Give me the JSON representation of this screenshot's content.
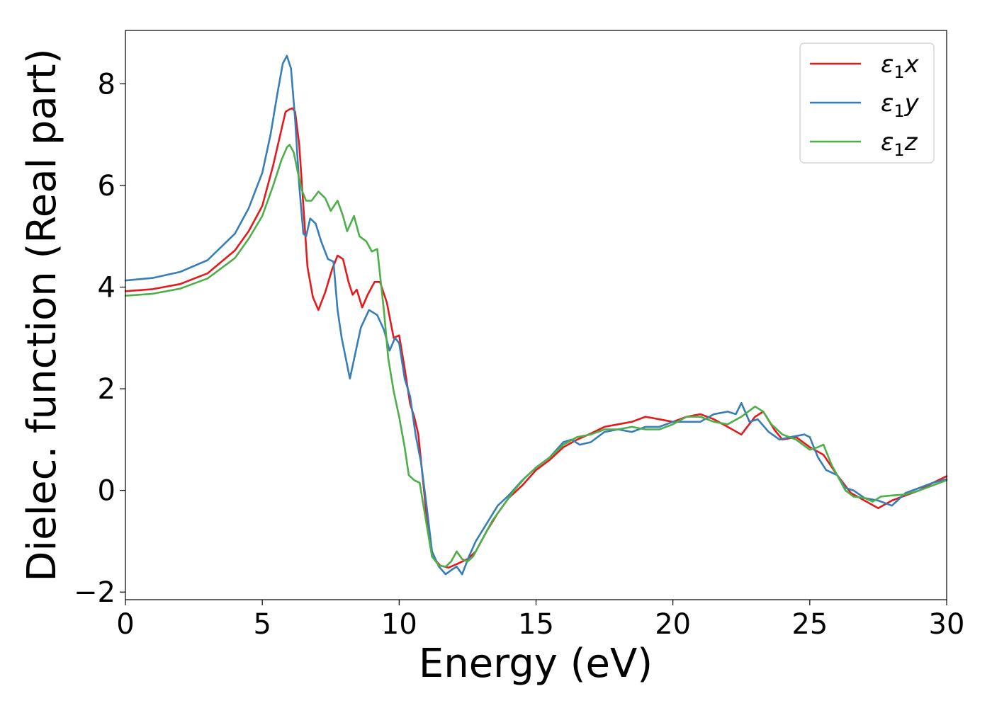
{
  "chart_data": {
    "type": "line",
    "title": "",
    "xlabel": "Energy (eV)",
    "ylabel": "Dielec. function (Real part)",
    "xlim": [
      0,
      30
    ],
    "ylim": [
      -2.15,
      9.05
    ],
    "xticks": [
      0,
      5,
      10,
      15,
      20,
      25,
      30
    ],
    "xtick_labels": [
      "0",
      "5",
      "10",
      "15",
      "20",
      "25",
      "30"
    ],
    "yticks": [
      -2,
      0,
      2,
      4,
      6,
      8
    ],
    "ytick_labels": [
      "−2",
      "0",
      "2",
      "4",
      "6",
      "8"
    ],
    "grid": false,
    "legend_position": "top-right",
    "series": [
      {
        "name": "ε₁x",
        "legend_main": "ε",
        "legend_sub": "1",
        "legend_tail": "x",
        "color": "#e41a1c",
        "points": [
          [
            0,
            3.92
          ],
          [
            1,
            3.96
          ],
          [
            2,
            4.06
          ],
          [
            3,
            4.27
          ],
          [
            4,
            4.72
          ],
          [
            4.5,
            5.1
          ],
          [
            5,
            5.6
          ],
          [
            5.4,
            6.4
          ],
          [
            5.7,
            7.1
          ],
          [
            5.85,
            7.45
          ],
          [
            6.0,
            7.5
          ],
          [
            6.1,
            7.52
          ],
          [
            6.2,
            7.45
          ],
          [
            6.35,
            6.8
          ],
          [
            6.5,
            5.6
          ],
          [
            6.65,
            4.4
          ],
          [
            6.85,
            3.8
          ],
          [
            7.05,
            3.55
          ],
          [
            7.3,
            3.9
          ],
          [
            7.55,
            4.35
          ],
          [
            7.75,
            4.62
          ],
          [
            7.95,
            4.55
          ],
          [
            8.15,
            4.1
          ],
          [
            8.3,
            3.85
          ],
          [
            8.45,
            3.95
          ],
          [
            8.65,
            3.6
          ],
          [
            8.85,
            3.85
          ],
          [
            9.1,
            4.1
          ],
          [
            9.3,
            4.1
          ],
          [
            9.55,
            3.7
          ],
          [
            9.8,
            3.0
          ],
          [
            10.0,
            3.05
          ],
          [
            10.2,
            2.4
          ],
          [
            10.4,
            1.7
          ],
          [
            10.55,
            1.45
          ],
          [
            10.7,
            1.1
          ],
          [
            10.85,
            0.3
          ],
          [
            11.0,
            -0.5
          ],
          [
            11.2,
            -1.3
          ],
          [
            11.5,
            -1.48
          ],
          [
            11.8,
            -1.52
          ],
          [
            12.1,
            -1.45
          ],
          [
            12.5,
            -1.35
          ],
          [
            12.8,
            -1.2
          ],
          [
            13.2,
            -0.8
          ],
          [
            13.6,
            -0.45
          ],
          [
            14.0,
            -0.15
          ],
          [
            14.5,
            0.1
          ],
          [
            15.0,
            0.4
          ],
          [
            15.5,
            0.6
          ],
          [
            16.0,
            0.85
          ],
          [
            16.5,
            1.0
          ],
          [
            17.0,
            1.12
          ],
          [
            17.5,
            1.25
          ],
          [
            18.0,
            1.3
          ],
          [
            18.5,
            1.35
          ],
          [
            19.0,
            1.45
          ],
          [
            19.5,
            1.4
          ],
          [
            20.0,
            1.35
          ],
          [
            20.5,
            1.45
          ],
          [
            21.0,
            1.5
          ],
          [
            21.5,
            1.4
          ],
          [
            22.0,
            1.25
          ],
          [
            22.5,
            1.1
          ],
          [
            23.0,
            1.45
          ],
          [
            23.3,
            1.55
          ],
          [
            23.7,
            1.2
          ],
          [
            24.0,
            1.0
          ],
          [
            24.5,
            1.05
          ],
          [
            25.0,
            0.85
          ],
          [
            25.5,
            0.7
          ],
          [
            26.0,
            0.3
          ],
          [
            26.5,
            -0.05
          ],
          [
            27.0,
            -0.2
          ],
          [
            27.5,
            -0.35
          ],
          [
            28.0,
            -0.2
          ],
          [
            28.5,
            -0.1
          ],
          [
            29.0,
            0.0
          ],
          [
            29.5,
            0.15
          ],
          [
            30.0,
            0.28
          ]
        ]
      },
      {
        "name": "ε₁y",
        "legend_main": "ε",
        "legend_sub": "1",
        "legend_tail": "y",
        "color": "#377eb8",
        "points": [
          [
            0,
            4.13
          ],
          [
            1,
            4.18
          ],
          [
            2,
            4.3
          ],
          [
            3,
            4.53
          ],
          [
            4,
            5.05
          ],
          [
            4.5,
            5.55
          ],
          [
            5,
            6.25
          ],
          [
            5.3,
            7.0
          ],
          [
            5.55,
            7.8
          ],
          [
            5.75,
            8.4
          ],
          [
            5.9,
            8.55
          ],
          [
            6.05,
            8.3
          ],
          [
            6.2,
            7.3
          ],
          [
            6.35,
            6.0
          ],
          [
            6.5,
            5.05
          ],
          [
            6.6,
            5.0
          ],
          [
            6.75,
            5.35
          ],
          [
            6.95,
            5.25
          ],
          [
            7.15,
            4.9
          ],
          [
            7.4,
            4.55
          ],
          [
            7.6,
            4.5
          ],
          [
            7.75,
            3.55
          ],
          [
            7.9,
            3.0
          ],
          [
            8.05,
            2.6
          ],
          [
            8.2,
            2.2
          ],
          [
            8.4,
            2.7
          ],
          [
            8.6,
            3.2
          ],
          [
            8.9,
            3.55
          ],
          [
            9.2,
            3.45
          ],
          [
            9.45,
            3.15
          ],
          [
            9.65,
            2.75
          ],
          [
            9.85,
            3.0
          ],
          [
            10.0,
            2.9
          ],
          [
            10.2,
            2.2
          ],
          [
            10.4,
            1.85
          ],
          [
            10.6,
            1.1
          ],
          [
            10.8,
            0.55
          ],
          [
            11.0,
            -0.3
          ],
          [
            11.2,
            -1.2
          ],
          [
            11.45,
            -1.5
          ],
          [
            11.7,
            -1.65
          ],
          [
            11.95,
            -1.55
          ],
          [
            12.1,
            -1.5
          ],
          [
            12.3,
            -1.65
          ],
          [
            12.55,
            -1.3
          ],
          [
            12.8,
            -1.0
          ],
          [
            13.2,
            -0.65
          ],
          [
            13.6,
            -0.3
          ],
          [
            14.0,
            -0.1
          ],
          [
            14.5,
            0.2
          ],
          [
            15.0,
            0.45
          ],
          [
            15.5,
            0.65
          ],
          [
            16.0,
            0.95
          ],
          [
            16.3,
            1.0
          ],
          [
            16.6,
            0.9
          ],
          [
            17.0,
            0.95
          ],
          [
            17.5,
            1.15
          ],
          [
            18.0,
            1.2
          ],
          [
            18.5,
            1.15
          ],
          [
            19.0,
            1.25
          ],
          [
            19.5,
            1.25
          ],
          [
            20.0,
            1.35
          ],
          [
            20.5,
            1.35
          ],
          [
            21.0,
            1.35
          ],
          [
            21.5,
            1.5
          ],
          [
            22.0,
            1.55
          ],
          [
            22.3,
            1.5
          ],
          [
            22.5,
            1.72
          ],
          [
            22.8,
            1.35
          ],
          [
            23.1,
            1.4
          ],
          [
            23.5,
            1.15
          ],
          [
            23.9,
            1.0
          ],
          [
            24.3,
            1.05
          ],
          [
            24.8,
            1.1
          ],
          [
            25.0,
            1.05
          ],
          [
            25.3,
            0.65
          ],
          [
            25.6,
            0.4
          ],
          [
            26.0,
            0.3
          ],
          [
            26.3,
            0.05
          ],
          [
            26.6,
            0.0
          ],
          [
            27.0,
            -0.15
          ],
          [
            27.5,
            -0.2
          ],
          [
            28.0,
            -0.3
          ],
          [
            28.5,
            -0.05
          ],
          [
            29.0,
            0.05
          ],
          [
            29.5,
            0.15
          ],
          [
            30.0,
            0.22
          ]
        ]
      },
      {
        "name": "ε₁z",
        "legend_main": "ε",
        "legend_sub": "1",
        "legend_tail": "z",
        "color": "#4daf4a",
        "points": [
          [
            0,
            3.83
          ],
          [
            1,
            3.87
          ],
          [
            2,
            3.97
          ],
          [
            3,
            4.17
          ],
          [
            4,
            4.57
          ],
          [
            4.5,
            4.95
          ],
          [
            5,
            5.4
          ],
          [
            5.4,
            6.0
          ],
          [
            5.7,
            6.5
          ],
          [
            5.9,
            6.75
          ],
          [
            6.0,
            6.8
          ],
          [
            6.15,
            6.65
          ],
          [
            6.3,
            6.25
          ],
          [
            6.45,
            5.9
          ],
          [
            6.6,
            5.7
          ],
          [
            6.8,
            5.7
          ],
          [
            7.05,
            5.88
          ],
          [
            7.3,
            5.75
          ],
          [
            7.5,
            5.5
          ],
          [
            7.75,
            5.7
          ],
          [
            7.95,
            5.4
          ],
          [
            8.1,
            5.1
          ],
          [
            8.35,
            5.4
          ],
          [
            8.55,
            5.0
          ],
          [
            8.8,
            4.9
          ],
          [
            9.0,
            4.7
          ],
          [
            9.2,
            4.75
          ],
          [
            9.45,
            3.5
          ],
          [
            9.6,
            2.6
          ],
          [
            9.8,
            1.95
          ],
          [
            10.0,
            1.45
          ],
          [
            10.2,
            0.85
          ],
          [
            10.35,
            0.3
          ],
          [
            10.55,
            0.2
          ],
          [
            10.75,
            0.15
          ],
          [
            10.95,
            -0.5
          ],
          [
            11.2,
            -1.3
          ],
          [
            11.45,
            -1.48
          ],
          [
            11.7,
            -1.5
          ],
          [
            11.9,
            -1.4
          ],
          [
            12.1,
            -1.2
          ],
          [
            12.3,
            -1.35
          ],
          [
            12.5,
            -1.4
          ],
          [
            12.7,
            -1.3
          ],
          [
            13.0,
            -1.0
          ],
          [
            13.4,
            -0.6
          ],
          [
            13.8,
            -0.3
          ],
          [
            14.2,
            0.0
          ],
          [
            14.6,
            0.25
          ],
          [
            15.0,
            0.45
          ],
          [
            15.5,
            0.65
          ],
          [
            16.0,
            0.9
          ],
          [
            16.5,
            1.05
          ],
          [
            17.0,
            1.1
          ],
          [
            17.5,
            1.2
          ],
          [
            18.0,
            1.2
          ],
          [
            18.5,
            1.25
          ],
          [
            19.0,
            1.2
          ],
          [
            19.5,
            1.2
          ],
          [
            20.0,
            1.3
          ],
          [
            20.5,
            1.45
          ],
          [
            21.0,
            1.45
          ],
          [
            21.5,
            1.35
          ],
          [
            22.0,
            1.3
          ],
          [
            22.5,
            1.45
          ],
          [
            23.0,
            1.65
          ],
          [
            23.3,
            1.55
          ],
          [
            23.6,
            1.3
          ],
          [
            24.0,
            1.1
          ],
          [
            24.5,
            1.0
          ],
          [
            25.0,
            0.8
          ],
          [
            25.3,
            0.85
          ],
          [
            25.5,
            0.9
          ],
          [
            25.8,
            0.5
          ],
          [
            26.0,
            0.3
          ],
          [
            26.3,
            0.0
          ],
          [
            26.6,
            -0.12
          ],
          [
            27.0,
            -0.15
          ],
          [
            27.3,
            -0.22
          ],
          [
            27.6,
            -0.12
          ],
          [
            28.0,
            -0.1
          ],
          [
            28.5,
            -0.08
          ],
          [
            29.0,
            0.0
          ],
          [
            29.5,
            0.1
          ],
          [
            30.0,
            0.2
          ]
        ]
      }
    ]
  }
}
